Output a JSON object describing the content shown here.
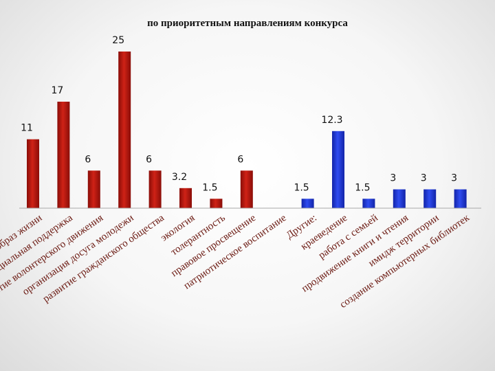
{
  "chart_data": {
    "type": "bar",
    "title": "по приоритетным направлениям конкурса",
    "categories": [
      "здоровый образ жизни",
      "социальная поддержка",
      "развитие волонтерского движения",
      "организация досуга молодежи",
      "развитие гражданского общества",
      "экология",
      "толерантность",
      "правовое просвещение",
      "патриотическое воспитание",
      "Другие:",
      "краеведение",
      "работа с семьей",
      "продвижение книги и чтения",
      "имидж территории",
      "создание компьютерных библиотек"
    ],
    "values": [
      11,
      17,
      6,
      25,
      6,
      3.2,
      1.5,
      6,
      null,
      1.5,
      12.3,
      1.5,
      3,
      3,
      3
    ],
    "value_labels": [
      "11",
      "17",
      "6",
      "25",
      "6",
      "3.2",
      "1.5",
      "6",
      "",
      "1.5",
      "12.3",
      "1.5",
      "3",
      "3",
      "3"
    ],
    "group": [
      "main",
      "main",
      "main",
      "main",
      "main",
      "main",
      "main",
      "main",
      "none",
      "other",
      "other",
      "other",
      "other",
      "other",
      "other"
    ],
    "ylim": [
      0,
      25
    ],
    "grid": false,
    "legend": "none",
    "colors": {
      "main_top": "#c81e14",
      "main_bottom": "#8a0d08",
      "other_top": "#2c49e6",
      "other_bottom": "#1224a8",
      "axis": "#a8a8a8",
      "category_text": "#6b1a12"
    }
  }
}
